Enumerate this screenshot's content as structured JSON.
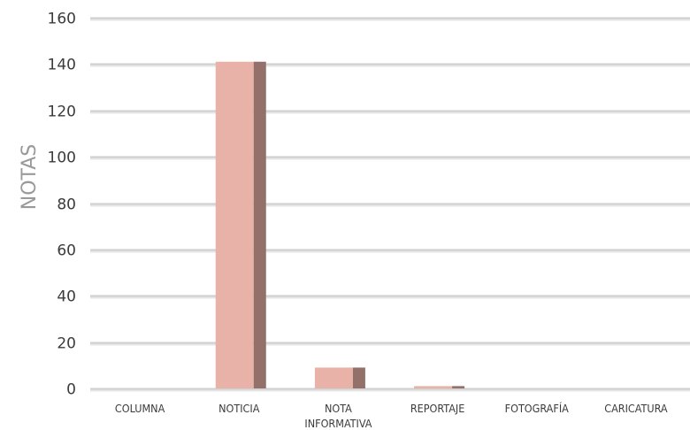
{
  "chart_data": {
    "type": "bar",
    "ylabel": "NOTAS",
    "xlabel": "",
    "categories": [
      "COLUMNA",
      "NOTICIA",
      "NOTA INFORMATIVA",
      "REPORTAJE",
      "FOTOGRAFÍA",
      "CARICATURA"
    ],
    "category_lines": [
      [
        "COLUMNA"
      ],
      [
        "NOTICIA"
      ],
      [
        "NOTA",
        "INFORMATIVA"
      ],
      [
        "REPORTAJE"
      ],
      [
        "FOTOGRAFÍA"
      ],
      [
        "CARICATURA"
      ]
    ],
    "values": [
      0,
      141,
      9,
      1,
      0,
      0
    ],
    "ylim": [
      0,
      160
    ],
    "yticks": [
      0,
      20,
      40,
      60,
      80,
      100,
      120,
      140,
      160
    ],
    "grid": true,
    "legend": "none",
    "colors": {
      "bar_front": "#e8b2a8",
      "bar_side": "#94706a",
      "grid": "#cfcfcf",
      "grid_shadow": "#e6e6e6"
    }
  }
}
